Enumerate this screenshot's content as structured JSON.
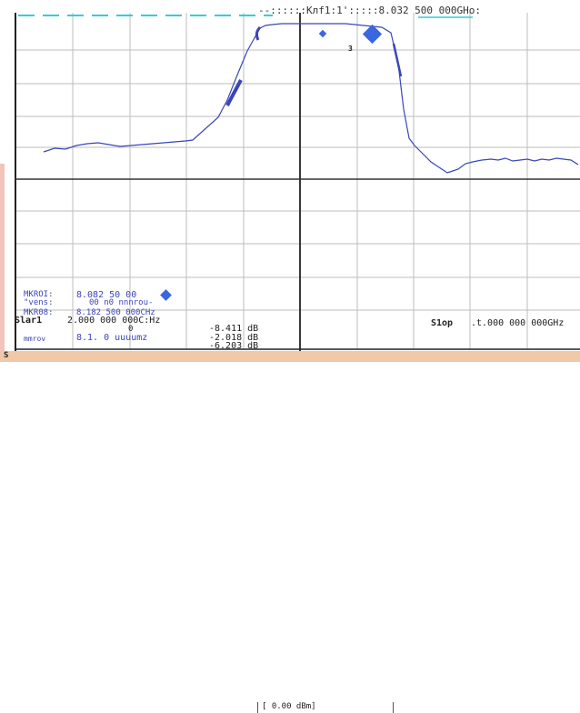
{
  "header": {
    "marker1_readout": "--::::::Kлf1:1':::::8.032 500 000GHo:"
  },
  "markers": {
    "mkr01_label": "MKROI:",
    "mkr01_value": "8.082 50 00",
    "mkr01_sub_label": "\"vens:",
    "mkr01_sub_value": "00 n0 nnnrou-",
    "mkr08_label": "MKR08:",
    "mkr08_value": "8.182 500 000CHz",
    "mkrov_label": "mmrov",
    "mkrov_value": "8.1.    0 uuuumz",
    "marker_number": "3"
  },
  "sweep": {
    "start_label": "Slar1",
    "start_value": "2.000 000 000C:Hz",
    "stop_label": "S1op",
    "stop_value": ".t.000 000 000GHz",
    "center_zero": "0"
  },
  "readouts": {
    "delta1": "-8.411 dB",
    "delta2": "-2.018 dB",
    "delta3": "-6.203 dB"
  },
  "footer": {
    "status_letter": "S",
    "reference_level": "[   0.00 dBm]"
  },
  "trace": {
    "x_points": [
      48,
      60,
      72,
      84,
      96,
      108,
      120,
      132,
      144,
      156,
      168,
      180,
      192,
      204,
      212,
      240,
      250,
      262,
      272,
      282,
      286,
      292,
      300,
      310,
      320,
      330,
      340,
      350,
      360,
      370,
      380,
      390,
      400,
      410,
      420,
      430,
      438,
      444,
      450,
      456,
      462,
      468,
      474,
      480,
      486,
      492,
      498,
      504,
      512,
      520,
      530,
      540,
      548,
      556,
      564,
      572,
      580,
      588,
      596,
      604,
      612,
      620,
      628,
      636
    ],
    "y_points": [
      167,
      163,
      164,
      160,
      158,
      157,
      159,
      161,
      160,
      159,
      158,
      157,
      156,
      155,
      154,
      129,
      110,
      80,
      56,
      38,
      31,
      28,
      27,
      26,
      26,
      26,
      26,
      26,
      26,
      26,
      26,
      27,
      28,
      29,
      30,
      36,
      70,
      120,
      152,
      160,
      166,
      172,
      178,
      182,
      186,
      190,
      188,
      186,
      180,
      178,
      176,
      175,
      176,
      174,
      177,
      176,
      175,
      177,
      175,
      176,
      174,
      175,
      176,
      181
    ],
    "colors": {
      "trace": "#3a46b8",
      "grid": "#bdbdbd",
      "frame": "#222222",
      "dash": "#33ccdd"
    }
  }
}
